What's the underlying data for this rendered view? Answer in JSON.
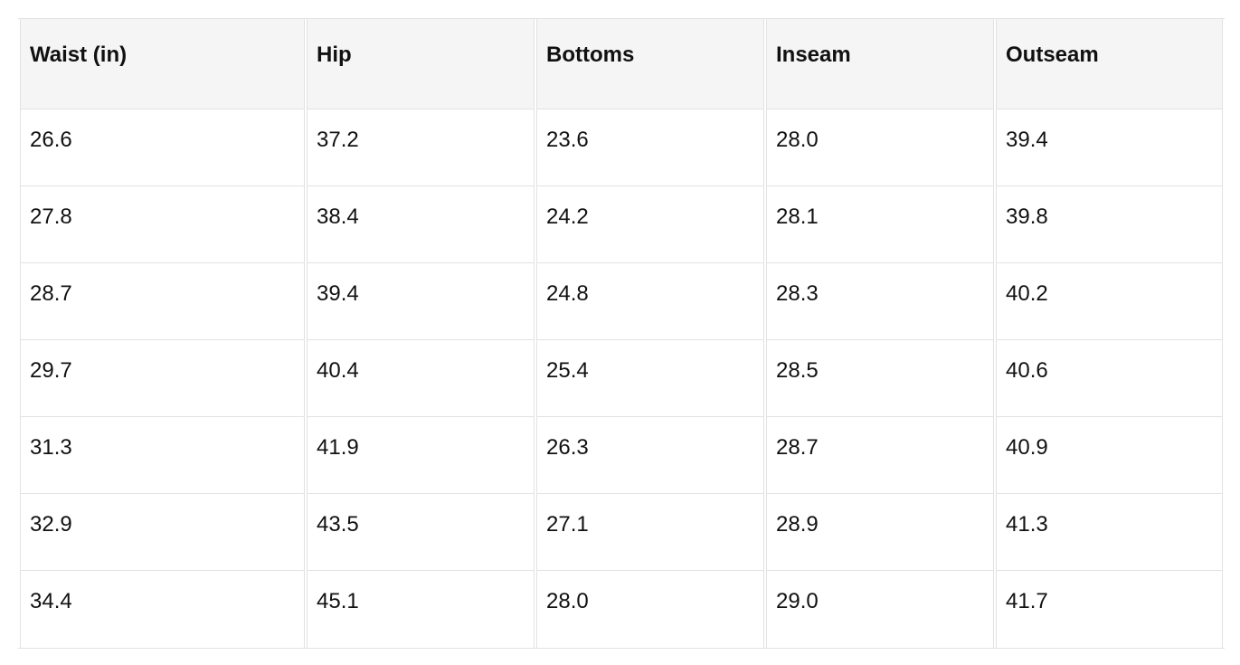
{
  "size_table": {
    "headers": [
      "Waist (in)",
      "Hip",
      "Bottoms",
      "Inseam",
      "Outseam"
    ],
    "rows": [
      [
        "26.6",
        "37.2",
        "23.6",
        "28.0",
        "39.4"
      ],
      [
        "27.8",
        "38.4",
        "24.2",
        "28.1",
        "39.8"
      ],
      [
        "28.7",
        "39.4",
        "24.8",
        "28.3",
        "40.2"
      ],
      [
        "29.7",
        "40.4",
        "25.4",
        "28.5",
        "40.6"
      ],
      [
        "31.3",
        "41.9",
        "26.3",
        "28.7",
        "40.9"
      ],
      [
        "32.9",
        "43.5",
        "27.1",
        "28.9",
        "41.3"
      ],
      [
        "34.4",
        "45.1",
        "28.0",
        "29.0",
        "41.7"
      ]
    ]
  }
}
